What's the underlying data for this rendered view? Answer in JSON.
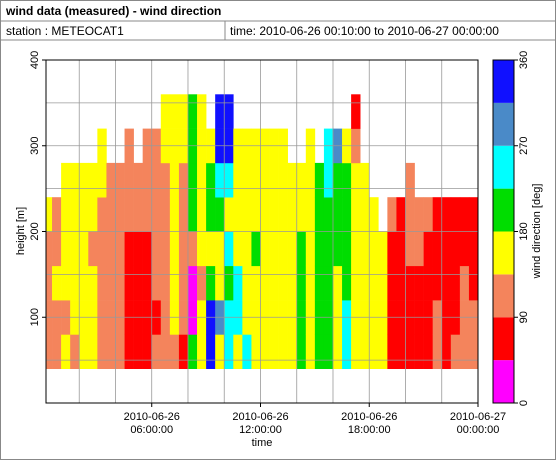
{
  "chart_data": {
    "type": "heatmap",
    "title": "wind data (measured) - wind direction",
    "station": "station : METEOCAT1",
    "time_range": "time: 2010-06-26 00:10:00 to 2010-06-27 00:00:00",
    "xlabel": "time",
    "ylabel": "height [m]",
    "xlim": [
      0.1667,
      24
    ],
    "ylim": [
      0,
      400
    ],
    "yticks": [
      100,
      200,
      300,
      400
    ],
    "xticks": [
      {
        "value": 6,
        "label": "2010-06-26 06:00:00"
      },
      {
        "value": 12,
        "label": "2010-06-26 12:00:00"
      },
      {
        "value": 18,
        "label": "2010-06-26 18:00:00"
      },
      {
        "value": 24,
        "label": "2010-06-27 00:00:00"
      }
    ],
    "xgrid": [
      2,
      4,
      6,
      8,
      10,
      12,
      14,
      16,
      18,
      20,
      22
    ],
    "ygrid": [
      50,
      100,
      150,
      200,
      250,
      300,
      350
    ],
    "xbins": [
      0.1667,
      0.5,
      1,
      1.5,
      2,
      2.5,
      3,
      3.5,
      4,
      4.5,
      5,
      5.5,
      6,
      6.5,
      7,
      7.5,
      8,
      8.5,
      9,
      9.5,
      10,
      10.5,
      11,
      11.5,
      12,
      12.5,
      13,
      13.5,
      14,
      14.5,
      15,
      15.5,
      16,
      16.5,
      17,
      17.5,
      18,
      18.5,
      19,
      19.5,
      20,
      20.5,
      21,
      21.5,
      22,
      22.5,
      23,
      23.5,
      24
    ],
    "ybins": [
      40,
      80,
      120,
      160,
      200,
      240,
      280,
      320,
      360
    ],
    "values": [
      [
        110,
        110,
        110,
        110,
        160,
        null,
        null,
        null
      ],
      [
        110,
        110,
        160,
        110,
        110,
        null,
        null,
        null
      ],
      [
        160,
        110,
        160,
        160,
        160,
        160,
        null,
        null
      ],
      [
        110,
        160,
        160,
        160,
        160,
        160,
        null,
        null
      ],
      [
        160,
        160,
        160,
        160,
        160,
        160,
        null,
        null
      ],
      [
        160,
        160,
        160,
        110,
        160,
        160,
        null,
        null
      ],
      [
        110,
        110,
        110,
        110,
        110,
        160,
        160,
        null
      ],
      [
        110,
        110,
        110,
        110,
        110,
        110,
        null,
        null
      ],
      [
        110,
        110,
        110,
        110,
        110,
        110,
        null,
        null
      ],
      [
        70,
        70,
        70,
        70,
        110,
        110,
        110,
        null
      ],
      [
        70,
        70,
        70,
        70,
        110,
        110,
        null,
        null
      ],
      [
        70,
        70,
        70,
        70,
        110,
        110,
        110,
        null
      ],
      [
        110,
        70,
        110,
        110,
        110,
        110,
        110,
        null
      ],
      [
        110,
        110,
        110,
        110,
        110,
        110,
        160,
        160
      ],
      [
        110,
        160,
        160,
        160,
        160,
        160,
        160,
        160
      ],
      [
        70,
        110,
        110,
        110,
        110,
        110,
        160,
        160
      ],
      [
        200,
        20,
        20,
        110,
        200,
        200,
        200,
        200
      ],
      [
        160,
        160,
        110,
        160,
        160,
        160,
        160,
        160
      ],
      [
        340,
        340,
        200,
        160,
        200,
        200,
        160,
        null
      ],
      [
        160,
        290,
        160,
        160,
        200,
        250,
        340,
        340
      ],
      [
        250,
        250,
        200,
        250,
        160,
        250,
        340,
        340
      ],
      [
        160,
        250,
        250,
        160,
        160,
        160,
        160,
        null
      ],
      [
        250,
        160,
        160,
        160,
        160,
        160,
        160,
        null
      ],
      [
        160,
        160,
        160,
        200,
        160,
        160,
        160,
        null
      ],
      [
        160,
        160,
        160,
        160,
        160,
        160,
        160,
        null
      ],
      [
        160,
        160,
        160,
        160,
        160,
        160,
        160,
        null
      ],
      [
        160,
        160,
        160,
        160,
        160,
        160,
        160,
        null
      ],
      [
        160,
        160,
        160,
        160,
        160,
        160,
        null,
        null
      ],
      [
        200,
        200,
        200,
        200,
        160,
        160,
        null,
        null
      ],
      [
        160,
        160,
        160,
        160,
        160,
        160,
        160,
        null
      ],
      [
        200,
        200,
        200,
        200,
        200,
        200,
        null,
        null
      ],
      [
        200,
        200,
        200,
        200,
        200,
        250,
        250,
        null
      ],
      [
        160,
        160,
        160,
        200,
        200,
        200,
        290,
        null
      ],
      [
        250,
        250,
        200,
        200,
        200,
        200,
        160,
        null
      ],
      [
        160,
        160,
        160,
        160,
        160,
        160,
        110,
        70
      ],
      [
        160,
        160,
        160,
        160,
        160,
        160,
        null,
        null
      ],
      [
        160,
        160,
        160,
        160,
        160,
        null,
        null,
        null
      ],
      [
        160,
        160,
        160,
        160,
        null,
        null,
        null,
        null
      ],
      [
        70,
        70,
        70,
        70,
        110,
        null,
        null,
        null
      ],
      [
        70,
        70,
        70,
        70,
        70,
        null,
        null,
        null
      ],
      [
        70,
        70,
        70,
        110,
        110,
        110,
        null,
        null
      ],
      [
        70,
        70,
        70,
        110,
        110,
        null,
        null,
        null
      ],
      [
        70,
        70,
        70,
        70,
        110,
        null,
        null,
        null
      ],
      [
        110,
        110,
        70,
        70,
        70,
        null,
        null,
        null
      ],
      [
        70,
        70,
        70,
        70,
        70,
        null,
        null,
        null
      ],
      [
        110,
        70,
        70,
        70,
        70,
        null,
        null,
        null
      ],
      [
        110,
        110,
        110,
        70,
        70,
        null,
        null,
        null
      ],
      [
        110,
        110,
        70,
        70,
        70,
        null,
        null,
        null
      ]
    ],
    "colorbar": {
      "label": "wind direction [deg]",
      "lim": [
        0,
        360
      ],
      "ticks": [
        0,
        90,
        180,
        270,
        360
      ],
      "bins": [
        0,
        45,
        90,
        135,
        180,
        225,
        270,
        315,
        360
      ],
      "colors": [
        "#ff00ff",
        "#ff0000",
        "#f4845c",
        "#ffff00",
        "#00dd00",
        "#00ffff",
        "#4a8ac8",
        "#1010ff"
      ]
    }
  }
}
